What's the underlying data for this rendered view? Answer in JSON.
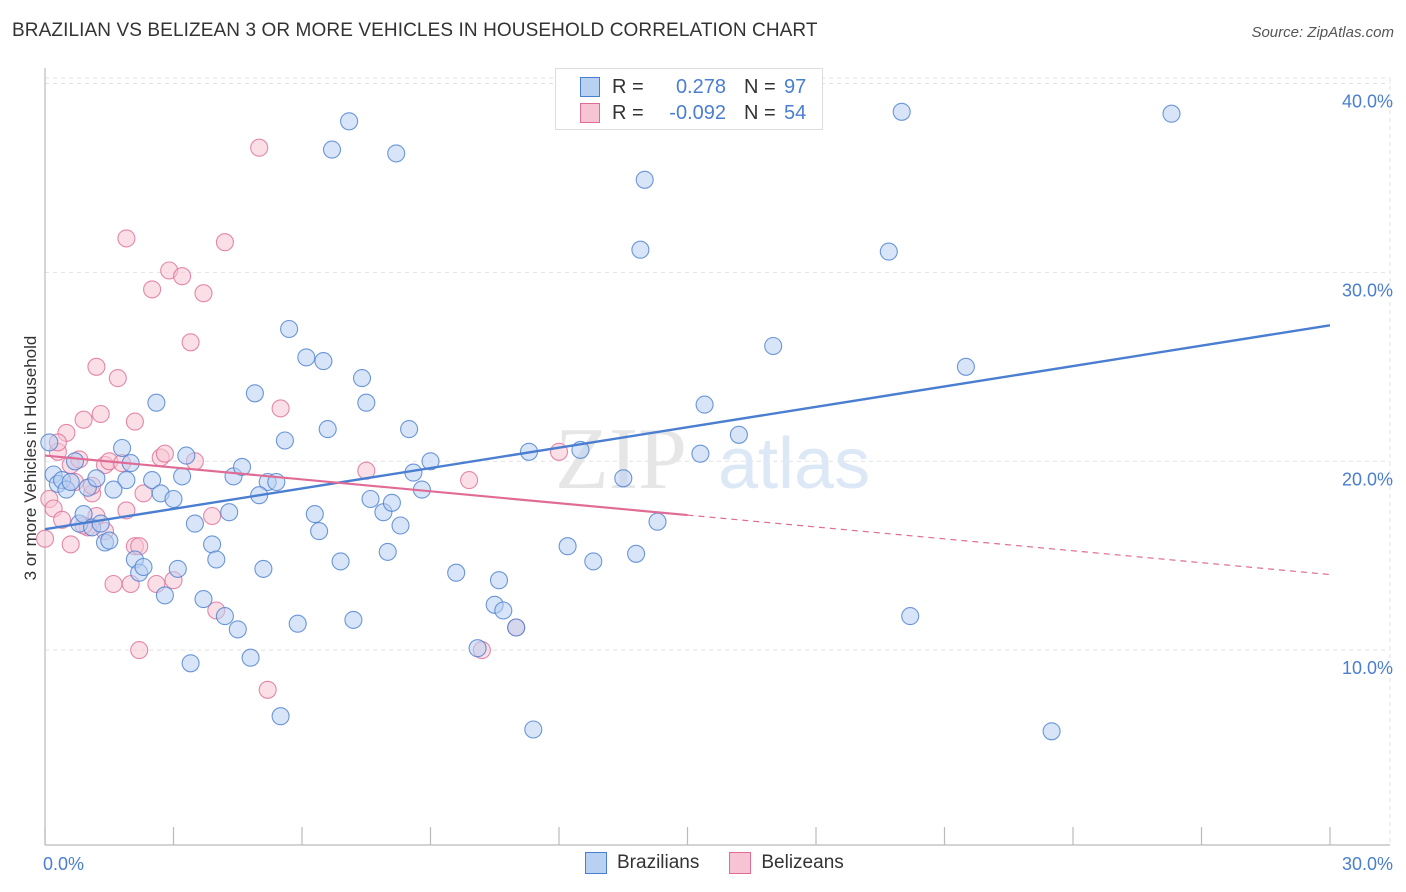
{
  "header": {
    "title": "BRAZILIAN VS BELIZEAN 3 OR MORE VEHICLES IN HOUSEHOLD CORRELATION CHART",
    "source": "Source: ZipAtlas.com"
  },
  "watermark": {
    "zip": "ZIP",
    "atlas": "atlas"
  },
  "legend": {
    "rows": [
      {
        "r_label": "R =",
        "r_value": "0.278",
        "n_label": "N =",
        "n_value": "97",
        "color": "#4a7ed0",
        "fill": "#b8d0f2"
      },
      {
        "r_label": "R =",
        "r_value": "-0.092",
        "n_label": "N =",
        "n_value": "54",
        "color": "#e06c96",
        "fill": "#f7c4d4"
      }
    ]
  },
  "bottom_legend": {
    "brazilians": "Brazilians",
    "belizeans": "Belizeans"
  },
  "chart_data": {
    "type": "scatter",
    "title": "BRAZILIAN VS BELIZEAN 3 OR MORE VEHICLES IN HOUSEHOLD CORRELATION CHART",
    "xlabel": "",
    "ylabel": "3 or more Vehicles in Household",
    "xlim": [
      0,
      30
    ],
    "ylim": [
      0,
      40
    ],
    "x_tick_labels": [
      "0.0%",
      "30.0%"
    ],
    "y_ticks": [
      10,
      20,
      30,
      40
    ],
    "y_tick_labels": [
      "10.0%",
      "20.0%",
      "30.0%",
      "40.0%"
    ],
    "legend_position": "top-center",
    "series": [
      {
        "name": "Brazilians",
        "color": "#4a7ed0",
        "fill": "#b8d0f2",
        "trend": {
          "x": [
            0,
            30
          ],
          "y": [
            16.4,
            27.2
          ],
          "dashed_from": null
        },
        "points": [
          [
            0.1,
            21.0
          ],
          [
            0.2,
            19.3
          ],
          [
            0.3,
            18.8
          ],
          [
            0.4,
            19.0
          ],
          [
            0.5,
            18.5
          ],
          [
            0.6,
            18.9
          ],
          [
            0.7,
            20.0
          ],
          [
            0.8,
            16.7
          ],
          [
            0.9,
            17.2
          ],
          [
            1.0,
            18.6
          ],
          [
            1.1,
            16.5
          ],
          [
            1.2,
            19.1
          ],
          [
            1.3,
            16.7
          ],
          [
            1.4,
            15.7
          ],
          [
            1.5,
            15.8
          ],
          [
            1.8,
            20.7
          ],
          [
            1.9,
            19.0
          ],
          [
            2.1,
            14.8
          ],
          [
            2.2,
            14.1
          ],
          [
            2.3,
            14.4
          ],
          [
            2.5,
            19.0
          ],
          [
            2.6,
            23.1
          ],
          [
            2.7,
            18.3
          ],
          [
            2.8,
            12.9
          ],
          [
            3.0,
            18.0
          ],
          [
            3.1,
            14.3
          ],
          [
            3.3,
            20.3
          ],
          [
            3.4,
            9.3
          ],
          [
            3.5,
            16.7
          ],
          [
            3.2,
            19.2
          ],
          [
            3.7,
            12.7
          ],
          [
            3.9,
            15.6
          ],
          [
            4.0,
            14.8
          ],
          [
            4.2,
            11.8
          ],
          [
            4.3,
            17.3
          ],
          [
            4.4,
            19.2
          ],
          [
            4.5,
            11.1
          ],
          [
            4.6,
            19.7
          ],
          [
            4.8,
            9.6
          ],
          [
            4.9,
            23.6
          ],
          [
            5.1,
            14.3
          ],
          [
            5.2,
            18.9
          ],
          [
            5.4,
            18.9
          ],
          [
            5.5,
            6.5
          ],
          [
            5.6,
            21.1
          ],
          [
            5.7,
            27.0
          ],
          [
            5.9,
            11.4
          ],
          [
            6.1,
            25.5
          ],
          [
            6.3,
            17.2
          ],
          [
            6.4,
            16.3
          ],
          [
            6.5,
            25.3
          ],
          [
            6.6,
            21.7
          ],
          [
            6.7,
            36.5
          ],
          [
            6.9,
            14.7
          ],
          [
            7.1,
            38.0
          ],
          [
            7.2,
            11.6
          ],
          [
            7.4,
            24.4
          ],
          [
            7.5,
            23.1
          ],
          [
            7.6,
            18.0
          ],
          [
            7.9,
            17.3
          ],
          [
            8.0,
            15.2
          ],
          [
            8.1,
            17.8
          ],
          [
            8.2,
            36.3
          ],
          [
            8.3,
            16.6
          ],
          [
            8.5,
            21.7
          ],
          [
            8.6,
            19.4
          ],
          [
            9.6,
            14.1
          ],
          [
            10.1,
            10.1
          ],
          [
            10.5,
            12.4
          ],
          [
            10.6,
            13.7
          ],
          [
            10.7,
            12.1
          ],
          [
            11.0,
            11.2
          ],
          [
            11.4,
            5.8
          ],
          [
            11.3,
            20.5
          ],
          [
            12.2,
            15.5
          ],
          [
            12.5,
            20.6
          ],
          [
            12.8,
            14.7
          ],
          [
            13.5,
            19.1
          ],
          [
            13.8,
            15.1
          ],
          [
            13.9,
            31.2
          ],
          [
            14.0,
            34.9
          ],
          [
            14.3,
            16.8
          ],
          [
            15.3,
            20.4
          ],
          [
            15.4,
            23.0
          ],
          [
            16.2,
            21.4
          ],
          [
            17.0,
            26.1
          ],
          [
            19.7,
            31.1
          ],
          [
            20.2,
            11.8
          ],
          [
            21.5,
            25.0
          ],
          [
            20.0,
            38.5
          ],
          [
            23.5,
            5.7
          ],
          [
            26.3,
            38.4
          ],
          [
            1.6,
            18.5
          ],
          [
            2.0,
            19.9
          ],
          [
            5.0,
            18.2
          ],
          [
            8.8,
            18.5
          ],
          [
            9.0,
            20.0
          ]
        ]
      },
      {
        "name": "Belizeans",
        "color": "#e06c96",
        "fill": "#f7c4d4",
        "trend": {
          "x": [
            0,
            30
          ],
          "y": [
            20.3,
            14.0
          ],
          "dashed_from": 15
        },
        "points": [
          [
            0.0,
            15.9
          ],
          [
            0.1,
            18.0
          ],
          [
            0.2,
            17.5
          ],
          [
            0.3,
            20.5
          ],
          [
            0.4,
            16.9
          ],
          [
            0.5,
            21.5
          ],
          [
            0.6,
            19.8
          ],
          [
            0.7,
            18.9
          ],
          [
            0.8,
            20.1
          ],
          [
            0.9,
            22.2
          ],
          [
            1.0,
            16.5
          ],
          [
            1.1,
            18.3
          ],
          [
            1.2,
            25.0
          ],
          [
            1.3,
            22.5
          ],
          [
            1.4,
            19.8
          ],
          [
            1.5,
            20.0
          ],
          [
            1.6,
            13.5
          ],
          [
            1.7,
            24.4
          ],
          [
            1.8,
            19.9
          ],
          [
            1.9,
            31.8
          ],
          [
            2.0,
            13.5
          ],
          [
            2.1,
            15.5
          ],
          [
            2.2,
            10.0
          ],
          [
            2.3,
            18.3
          ],
          [
            2.5,
            29.1
          ],
          [
            2.6,
            13.5
          ],
          [
            2.7,
            20.2
          ],
          [
            2.8,
            20.4
          ],
          [
            2.9,
            30.1
          ],
          [
            3.0,
            13.7
          ],
          [
            3.2,
            29.8
          ],
          [
            3.4,
            26.3
          ],
          [
            3.5,
            20.0
          ],
          [
            3.7,
            28.9
          ],
          [
            3.9,
            17.1
          ],
          [
            4.0,
            12.1
          ],
          [
            4.2,
            31.6
          ],
          [
            5.0,
            36.6
          ],
          [
            5.2,
            7.9
          ],
          [
            5.5,
            22.8
          ],
          [
            1.2,
            17.1
          ],
          [
            0.6,
            15.6
          ],
          [
            0.9,
            16.6
          ],
          [
            1.4,
            16.3
          ],
          [
            2.1,
            22.1
          ],
          [
            2.2,
            15.5
          ],
          [
            1.9,
            17.4
          ],
          [
            1.1,
            18.7
          ],
          [
            0.3,
            21.0
          ],
          [
            7.5,
            19.5
          ],
          [
            12.0,
            20.5
          ],
          [
            9.9,
            19.0
          ],
          [
            11.0,
            11.2
          ],
          [
            10.2,
            10.0
          ]
        ]
      }
    ]
  }
}
